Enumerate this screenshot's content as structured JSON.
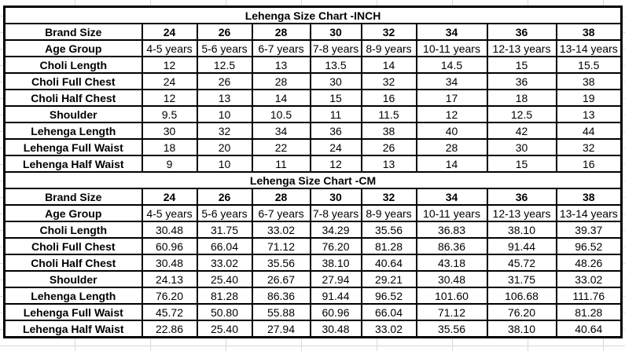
{
  "chart_data": [
    {
      "type": "table",
      "title": "Lehenga Size Chart -INCH",
      "unit": "inch",
      "header": {
        "label": "Brand Size",
        "values": [
          "24",
          "26",
          "28",
          "30",
          "32",
          "34",
          "36",
          "38"
        ]
      },
      "rows": [
        {
          "label": "Age Group",
          "values": [
            "4-5 years",
            "5-6 years",
            "6-7 years",
            "7-8 years",
            "8-9 years",
            "10-11 years",
            "12-13 years",
            "13-14 years"
          ]
        },
        {
          "label": "Choli Length",
          "values": [
            "12",
            "12.5",
            "13",
            "13.5",
            "14",
            "14.5",
            "15",
            "15.5"
          ]
        },
        {
          "label": "Choli Full Chest",
          "values": [
            "24",
            "26",
            "28",
            "30",
            "32",
            "34",
            "36",
            "38"
          ]
        },
        {
          "label": "Choli Half Chest",
          "values": [
            "12",
            "13",
            "14",
            "15",
            "16",
            "17",
            "18",
            "19"
          ]
        },
        {
          "label": "Shoulder",
          "values": [
            "9.5",
            "10",
            "10.5",
            "11",
            "11.5",
            "12",
            "12.5",
            "13"
          ]
        },
        {
          "label": "Lehenga Length",
          "values": [
            "30",
            "32",
            "34",
            "36",
            "38",
            "40",
            "42",
            "44"
          ]
        },
        {
          "label": "Lehenga Full Waist",
          "values": [
            "18",
            "20",
            "22",
            "24",
            "26",
            "28",
            "30",
            "32"
          ]
        },
        {
          "label": "Lehenga Half Waist",
          "values": [
            "9",
            "10",
            "11",
            "12",
            "13",
            "14",
            "15",
            "16"
          ]
        }
      ]
    },
    {
      "type": "table",
      "title": "Lehenga  Size Chart -CM",
      "unit": "cm",
      "header": {
        "label": "Brand Size",
        "values": [
          "24",
          "26",
          "28",
          "30",
          "32",
          "34",
          "36",
          "38"
        ]
      },
      "rows": [
        {
          "label": "Age Group",
          "values": [
            "4-5 years",
            "5-6 years",
            "6-7 years",
            "7-8 years",
            "8-9 years",
            "10-11 years",
            "12-13 years",
            "13-14 years"
          ]
        },
        {
          "label": "Choli Length",
          "values": [
            "30.48",
            "31.75",
            "33.02",
            "34.29",
            "35.56",
            "36.83",
            "38.10",
            "39.37"
          ]
        },
        {
          "label": "Choli Full Chest",
          "values": [
            "60.96",
            "66.04",
            "71.12",
            "76.20",
            "81.28",
            "86.36",
            "91.44",
            "96.52"
          ]
        },
        {
          "label": "Choli Half Chest",
          "values": [
            "30.48",
            "33.02",
            "35.56",
            "38.10",
            "40.64",
            "43.18",
            "45.72",
            "48.26"
          ]
        },
        {
          "label": "Shoulder",
          "values": [
            "24.13",
            "25.40",
            "26.67",
            "27.94",
            "29.21",
            "30.48",
            "31.75",
            "33.02"
          ]
        },
        {
          "label": "Lehenga Length",
          "values": [
            "76.20",
            "81.28",
            "86.36",
            "91.44",
            "96.52",
            "101.60",
            "106.68",
            "111.76"
          ]
        },
        {
          "label": "Lehenga Full Waist",
          "values": [
            "45.72",
            "50.80",
            "55.88",
            "60.96",
            "66.04",
            "71.12",
            "76.20",
            "81.28"
          ]
        },
        {
          "label": "Lehenga Half Waist",
          "values": [
            "22.86",
            "25.40",
            "27.94",
            "30.48",
            "33.02",
            "35.56",
            "38.10",
            "40.64"
          ]
        }
      ]
    }
  ],
  "colors": {
    "border": "#000000",
    "text": "#000000",
    "background": "#ffffff",
    "gridline": "#d9d9d9"
  }
}
